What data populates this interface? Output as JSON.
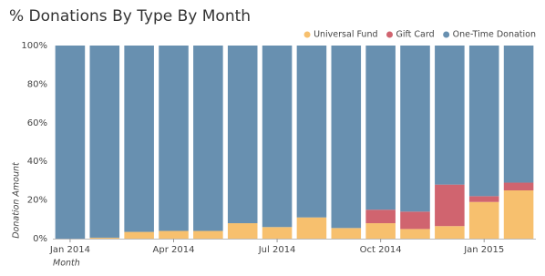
{
  "chart_data": {
    "type": "stacked_bar_percent",
    "title": "% Donations By Type By Month",
    "x_label": "Month",
    "y_label": "Donation Amount",
    "categories": [
      "Jan 2014",
      null,
      null,
      "Apr 2014",
      null,
      null,
      "Jul 2014",
      null,
      null,
      "Oct 2014",
      null,
      null,
      "Jan 2015",
      null
    ],
    "series": [
      {
        "name": "Universal Fund",
        "color": "#f7c06e",
        "values": [
          0,
          0.5,
          3.5,
          4,
          4,
          8,
          6,
          11,
          5.5,
          8,
          5,
          6.5,
          19,
          25
        ]
      },
      {
        "name": "Gift Card",
        "color": "#d0646f",
        "values": [
          0,
          0,
          0,
          0,
          0,
          0,
          0,
          0,
          0,
          7,
          9,
          21.5,
          3,
          4
        ]
      },
      {
        "name": "One-Time Donation",
        "color": "#6890b0",
        "values": [
          100,
          99.5,
          96.5,
          96,
          96,
          92,
          94,
          89,
          94.5,
          85,
          86,
          72,
          78,
          71
        ]
      }
    ],
    "ylim": [
      0,
      100
    ],
    "yticks": [
      {
        "value": 0,
        "label": "0%"
      },
      {
        "value": 20,
        "label": "20%"
      },
      {
        "value": 40,
        "label": "40%"
      },
      {
        "value": 60,
        "label": "60%"
      },
      {
        "value": 80,
        "label": "80%"
      },
      {
        "value": 100,
        "label": "100%"
      }
    ],
    "legend": "top-right",
    "grid": false
  }
}
